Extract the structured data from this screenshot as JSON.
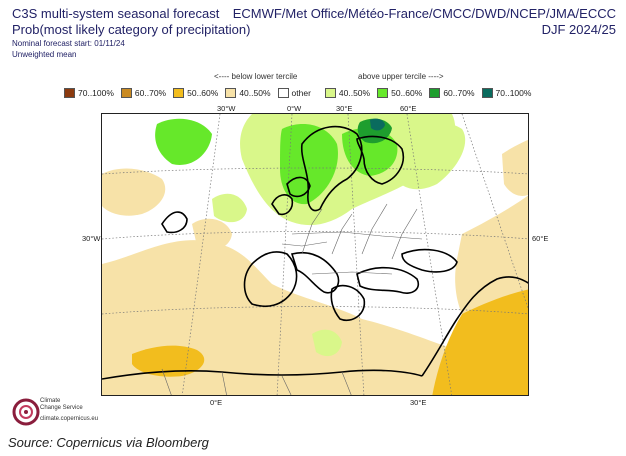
{
  "header": {
    "title_line1": "C3S multi-system seasonal forecast",
    "title_line2": "Prob(most likely category of precipitation)",
    "nominal_start": "Nominal forecast start: 01/11/24",
    "weighting": "Unweighted mean",
    "centres": "ECMWF/Met Office/Météo-France/CMCC/DWD/NCEP/JMA/ECCC",
    "season": "DJF 2024/25"
  },
  "legend": {
    "below_heading": "<---- below lower tercile",
    "above_heading": "above upper tercile ---->",
    "items": [
      {
        "label": "70..100%",
        "color": "#8b3a0f"
      },
      {
        "label": "60..70%",
        "color": "#c98a22"
      },
      {
        "label": "50..60%",
        "color": "#f2bd1e"
      },
      {
        "label": "40..50%",
        "color": "#f7e2a8"
      },
      {
        "label": "other",
        "color": "#ffffff"
      },
      {
        "label": "40..50%",
        "color": "#d9f78a"
      },
      {
        "label": "50..60%",
        "color": "#66e82a"
      },
      {
        "label": "60..70%",
        "color": "#1e9e2e"
      },
      {
        "label": "70..100%",
        "color": "#0a6b5e"
      }
    ]
  },
  "map": {
    "lon_top": [
      "30°W",
      "0°W",
      "30°E",
      "60°E"
    ],
    "lon_bottom": [
      "0°E",
      "30°E"
    ],
    "lat_left": "30°W",
    "lat_right": "60°E"
  },
  "logo": {
    "line1": "Climate",
    "line2": "Change Service",
    "line3": "climate.copernicus.eu"
  },
  "footer": {
    "source": "Source: Copernicus via Bloomberg"
  }
}
